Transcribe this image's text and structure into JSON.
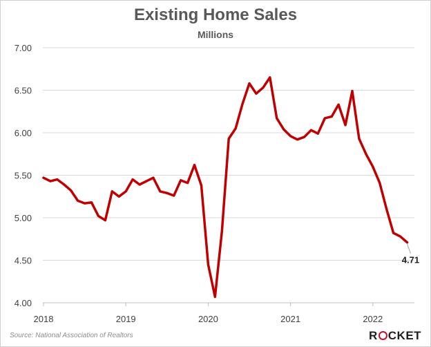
{
  "chart_data": {
    "type": "line",
    "title": "Existing Home Sales",
    "subtitle": "Millions",
    "xlabel": "",
    "ylabel": "",
    "x_ticks": [
      "2018",
      "2019",
      "2020",
      "2021",
      "2022"
    ],
    "y_ticks": [
      "7.00",
      "6.50",
      "6.00",
      "5.50",
      "5.00",
      "4.50",
      "4.00"
    ],
    "ylim": [
      4.0,
      7.0
    ],
    "grid": "horizontal",
    "line_color": "#c00000",
    "series": [
      {
        "x": [
          "2018-01",
          "2018-02",
          "2018-03",
          "2018-04",
          "2018-05",
          "2018-06",
          "2018-07",
          "2018-08",
          "2018-09",
          "2018-10",
          "2018-11",
          "2018-12",
          "2019-01",
          "2019-02",
          "2019-03",
          "2019-04",
          "2019-05",
          "2019-06",
          "2019-07",
          "2019-08",
          "2019-09",
          "2019-10",
          "2019-11",
          "2019-12",
          "2020-01",
          "2020-02",
          "2020-03",
          "2020-04",
          "2020-05",
          "2020-06",
          "2020-07",
          "2020-08",
          "2020-09",
          "2020-10",
          "2020-11",
          "2020-12",
          "2021-01",
          "2021-02",
          "2021-03",
          "2021-04",
          "2021-05",
          "2021-06",
          "2021-07",
          "2021-08",
          "2021-09",
          "2021-10",
          "2021-11",
          "2021-12",
          "2022-01",
          "2022-02",
          "2022-03",
          "2022-04",
          "2022-05",
          "2022-06"
        ],
        "values": [
          5.47,
          5.43,
          5.45,
          5.39,
          5.32,
          5.2,
          5.17,
          5.18,
          5.02,
          4.97,
          5.31,
          5.25,
          5.31,
          5.45,
          5.39,
          5.43,
          5.47,
          5.31,
          5.29,
          5.26,
          5.44,
          5.41,
          5.62,
          5.38,
          4.45,
          4.07,
          4.84,
          5.93,
          6.05,
          6.34,
          6.58,
          6.46,
          6.53,
          6.65,
          6.17,
          6.04,
          5.96,
          5.92,
          5.95,
          6.03,
          5.99,
          6.17,
          6.19,
          6.33,
          6.09,
          6.49,
          5.93,
          5.75,
          5.6,
          5.41,
          5.1,
          4.82,
          4.78,
          4.71
        ]
      }
    ],
    "annotation": "4.71"
  },
  "footer": {
    "source": "Source: National Association of Realtors",
    "logo": "ROCKET"
  },
  "colors": {
    "line": "#c00000",
    "grid": "#d9d9d9",
    "text": "#595959"
  }
}
